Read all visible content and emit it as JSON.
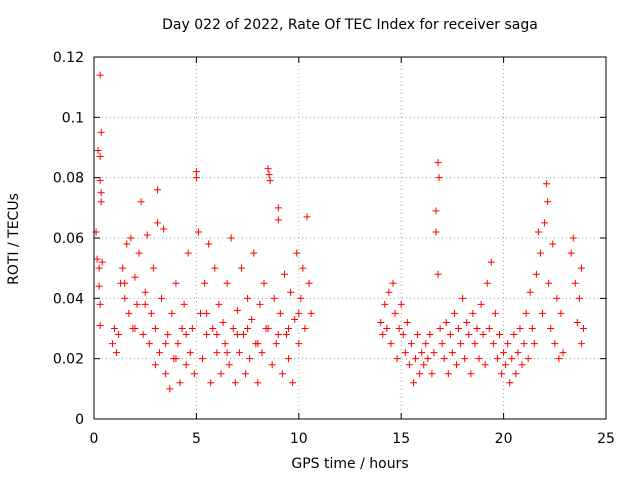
{
  "chart_data": {
    "type": "scatter",
    "title": "Day 022 of 2022, Rate Of TEC Index for receiver saga",
    "xlabel": "GPS time / hours",
    "ylabel": "ROTI / TECUs",
    "xlim": [
      0,
      25
    ],
    "ylim": [
      0,
      0.12
    ],
    "xticks": [
      "0",
      "5",
      "10",
      "15",
      "20",
      "25"
    ],
    "yticks": [
      "0",
      "0.02",
      "0.04",
      "0.06",
      "0.08",
      "0.1",
      "0.12"
    ],
    "grid": true,
    "marker": "+",
    "color": "#ff0000",
    "series": [
      {
        "values": [
          [
            0.1,
            0.062
          ],
          [
            0.15,
            0.053
          ],
          [
            0.2,
            0.089
          ],
          [
            0.25,
            0.05
          ],
          [
            0.3,
            0.114
          ],
          [
            0.3,
            0.087
          ],
          [
            0.35,
            0.095
          ],
          [
            0.3,
            0.079
          ],
          [
            0.35,
            0.072
          ],
          [
            0.35,
            0.075
          ],
          [
            0.25,
            0.044
          ],
          [
            0.3,
            0.038
          ],
          [
            0.3,
            0.031
          ],
          [
            0.4,
            0.052
          ],
          [
            0.9,
            0.025
          ],
          [
            1.0,
            0.03
          ],
          [
            1.1,
            0.022
          ],
          [
            1.2,
            0.028
          ],
          [
            1.3,
            0.045
          ],
          [
            1.4,
            0.05
          ],
          [
            1.5,
            0.04
          ],
          [
            1.6,
            0.058
          ],
          [
            1.7,
            0.035
          ],
          [
            1.8,
            0.06
          ],
          [
            1.9,
            0.03
          ],
          [
            2.0,
            0.047
          ],
          [
            2.1,
            0.038
          ],
          [
            2.2,
            0.055
          ],
          [
            2.3,
            0.072
          ],
          [
            2.4,
            0.028
          ],
          [
            2.5,
            0.042
          ],
          [
            2.6,
            0.061
          ],
          [
            2.7,
            0.025
          ],
          [
            2.8,
            0.035
          ],
          [
            2.9,
            0.05
          ],
          [
            3.0,
            0.018
          ],
          [
            3.1,
            0.076
          ],
          [
            3.1,
            0.065
          ],
          [
            3.2,
            0.022
          ],
          [
            3.3,
            0.04
          ],
          [
            3.4,
            0.063
          ],
          [
            3.5,
            0.015
          ],
          [
            3.6,
            0.028
          ],
          [
            3.7,
            0.01
          ],
          [
            3.8,
            0.035
          ],
          [
            3.9,
            0.02
          ],
          [
            4.0,
            0.045
          ],
          [
            4.1,
            0.025
          ],
          [
            4.2,
            0.012
          ],
          [
            4.3,
            0.03
          ],
          [
            4.4,
            0.038
          ],
          [
            4.5,
            0.018
          ],
          [
            4.6,
            0.055
          ],
          [
            4.7,
            0.022
          ],
          [
            4.8,
            0.03
          ],
          [
            4.9,
            0.015
          ],
          [
            5.0,
            0.082
          ],
          [
            5.0,
            0.08
          ],
          [
            5.1,
            0.062
          ],
          [
            5.2,
            0.035
          ],
          [
            5.3,
            0.02
          ],
          [
            5.4,
            0.045
          ],
          [
            5.5,
            0.028
          ],
          [
            5.6,
            0.058
          ],
          [
            5.7,
            0.012
          ],
          [
            5.8,
            0.03
          ],
          [
            5.9,
            0.05
          ],
          [
            6.0,
            0.022
          ],
          [
            6.1,
            0.038
          ],
          [
            6.2,
            0.015
          ],
          [
            6.3,
            0.032
          ],
          [
            6.4,
            0.025
          ],
          [
            6.5,
            0.045
          ],
          [
            6.6,
            0.018
          ],
          [
            6.7,
            0.06
          ],
          [
            6.8,
            0.03
          ],
          [
            6.9,
            0.012
          ],
          [
            7.0,
            0.036
          ],
          [
            7.1,
            0.022
          ],
          [
            7.2,
            0.05
          ],
          [
            7.3,
            0.028
          ],
          [
            7.4,
            0.015
          ],
          [
            7.5,
            0.04
          ],
          [
            7.6,
            0.02
          ],
          [
            7.7,
            0.033
          ],
          [
            7.8,
            0.055
          ],
          [
            7.9,
            0.025
          ],
          [
            8.0,
            0.012
          ],
          [
            8.1,
            0.038
          ],
          [
            8.2,
            0.022
          ],
          [
            8.3,
            0.045
          ],
          [
            8.4,
            0.03
          ],
          [
            8.5,
            0.083
          ],
          [
            8.6,
            0.079
          ],
          [
            8.55,
            0.081
          ],
          [
            8.7,
            0.018
          ],
          [
            8.8,
            0.04
          ],
          [
            8.9,
            0.025
          ],
          [
            9.0,
            0.07
          ],
          [
            9.0,
            0.066
          ],
          [
            9.1,
            0.035
          ],
          [
            9.2,
            0.015
          ],
          [
            9.3,
            0.048
          ],
          [
            9.4,
            0.028
          ],
          [
            9.5,
            0.02
          ],
          [
            9.6,
            0.042
          ],
          [
            9.7,
            0.012
          ],
          [
            9.8,
            0.033
          ],
          [
            9.9,
            0.055
          ],
          [
            10.0,
            0.025
          ],
          [
            10.1,
            0.04
          ],
          [
            10.2,
            0.05
          ],
          [
            10.3,
            0.03
          ],
          [
            10.4,
            0.067
          ],
          [
            10.5,
            0.045
          ],
          [
            10.6,
            0.035
          ],
          [
            1.5,
            0.045
          ],
          [
            2.0,
            0.03
          ],
          [
            2.5,
            0.038
          ],
          [
            3.0,
            0.03
          ],
          [
            3.5,
            0.025
          ],
          [
            4.0,
            0.02
          ],
          [
            4.5,
            0.028
          ],
          [
            5.5,
            0.035
          ],
          [
            6.0,
            0.028
          ],
          [
            6.5,
            0.022
          ],
          [
            7.0,
            0.028
          ],
          [
            7.5,
            0.03
          ],
          [
            8.0,
            0.025
          ],
          [
            8.5,
            0.03
          ],
          [
            9.0,
            0.028
          ],
          [
            9.5,
            0.03
          ],
          [
            10.0,
            0.035
          ],
          [
            14.0,
            0.032
          ],
          [
            14.1,
            0.028
          ],
          [
            14.2,
            0.038
          ],
          [
            14.3,
            0.03
          ],
          [
            14.4,
            0.042
          ],
          [
            14.5,
            0.025
          ],
          [
            14.6,
            0.045
          ],
          [
            14.7,
            0.035
          ],
          [
            14.8,
            0.02
          ],
          [
            14.9,
            0.03
          ],
          [
            15.0,
            0.038
          ],
          [
            15.1,
            0.028
          ],
          [
            15.2,
            0.022
          ],
          [
            15.3,
            0.032
          ],
          [
            15.4,
            0.018
          ],
          [
            15.5,
            0.025
          ],
          [
            15.6,
            0.012
          ],
          [
            15.7,
            0.02
          ],
          [
            15.8,
            0.028
          ],
          [
            15.9,
            0.015
          ],
          [
            16.0,
            0.022
          ],
          [
            16.1,
            0.018
          ],
          [
            16.2,
            0.025
          ],
          [
            16.3,
            0.02
          ],
          [
            16.4,
            0.028
          ],
          [
            16.5,
            0.015
          ],
          [
            16.6,
            0.022
          ],
          [
            16.7,
            0.062
          ],
          [
            16.7,
            0.069
          ],
          [
            16.8,
            0.085
          ],
          [
            16.85,
            0.08
          ],
          [
            16.8,
            0.048
          ],
          [
            16.9,
            0.03
          ],
          [
            17.0,
            0.025
          ],
          [
            17.1,
            0.02
          ],
          [
            17.2,
            0.032
          ],
          [
            17.3,
            0.015
          ],
          [
            17.4,
            0.028
          ],
          [
            17.5,
            0.022
          ],
          [
            17.6,
            0.035
          ],
          [
            17.7,
            0.018
          ],
          [
            17.8,
            0.03
          ],
          [
            17.9,
            0.025
          ],
          [
            18.0,
            0.04
          ],
          [
            18.1,
            0.02
          ],
          [
            18.2,
            0.032
          ],
          [
            18.3,
            0.028
          ],
          [
            18.4,
            0.015
          ],
          [
            18.5,
            0.035
          ],
          [
            18.6,
            0.025
          ],
          [
            18.7,
            0.03
          ],
          [
            18.8,
            0.02
          ],
          [
            18.9,
            0.038
          ],
          [
            19.0,
            0.028
          ],
          [
            19.1,
            0.018
          ],
          [
            19.2,
            0.045
          ],
          [
            19.3,
            0.03
          ],
          [
            19.4,
            0.052
          ],
          [
            19.5,
            0.025
          ],
          [
            19.6,
            0.035
          ],
          [
            19.7,
            0.02
          ],
          [
            19.8,
            0.028
          ],
          [
            19.9,
            0.015
          ],
          [
            20.0,
            0.022
          ],
          [
            20.1,
            0.018
          ],
          [
            20.2,
            0.025
          ],
          [
            20.3,
            0.012
          ],
          [
            20.4,
            0.02
          ],
          [
            20.5,
            0.028
          ],
          [
            20.6,
            0.015
          ],
          [
            20.7,
            0.022
          ],
          [
            20.8,
            0.03
          ],
          [
            20.9,
            0.018
          ],
          [
            21.0,
            0.025
          ],
          [
            21.1,
            0.035
          ],
          [
            21.2,
            0.02
          ],
          [
            21.3,
            0.042
          ],
          [
            21.4,
            0.03
          ],
          [
            21.5,
            0.025
          ],
          [
            21.6,
            0.048
          ],
          [
            21.7,
            0.062
          ],
          [
            21.8,
            0.055
          ],
          [
            21.9,
            0.035
          ],
          [
            22.0,
            0.065
          ],
          [
            22.1,
            0.078
          ],
          [
            22.15,
            0.072
          ],
          [
            22.2,
            0.045
          ],
          [
            22.3,
            0.03
          ],
          [
            22.4,
            0.058
          ],
          [
            22.5,
            0.025
          ],
          [
            22.6,
            0.04
          ],
          [
            22.7,
            0.02
          ],
          [
            22.8,
            0.035
          ],
          [
            22.9,
            0.022
          ],
          [
            23.3,
            0.055
          ],
          [
            23.4,
            0.06
          ],
          [
            23.5,
            0.045
          ],
          [
            23.6,
            0.032
          ],
          [
            23.7,
            0.04
          ],
          [
            23.8,
            0.025
          ],
          [
            23.9,
            0.03
          ],
          [
            23.8,
            0.05
          ]
        ]
      }
    ]
  }
}
